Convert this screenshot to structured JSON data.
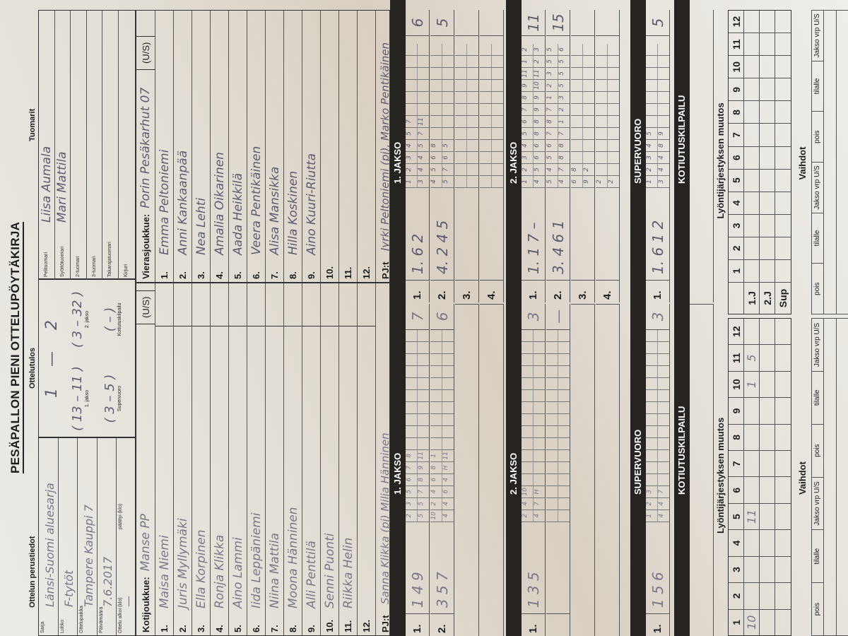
{
  "form": {
    "title": "PESÄPALLON PIENI OTTELUPÖYTÄKIRJA",
    "section_basic": "Ottelun perustiedot",
    "section_result": "Ottelutulos",
    "section_referees": "Tuomarit"
  },
  "basic": [
    {
      "label": "Sarja",
      "value": "Länsi-Suomi aluesarja"
    },
    {
      "label": "Lohko",
      "value": "F-tytöt"
    },
    {
      "label": "Ottelupaikka",
      "value": "Tampere Kauppi 7"
    },
    {
      "label": "Päivämäärä",
      "value": "7.6.2017"
    },
    {
      "label": "Ottelu alkoi (klo)",
      "value": "—",
      "label2": "päättyi (klo)",
      "value2": ""
    }
  ],
  "result": {
    "home": "1",
    "dash": "—",
    "away": "2",
    "periods": [
      {
        "label": "1. jakso",
        "home": "13",
        "away": "11"
      },
      {
        "label": "2. jakso",
        "home": "3",
        "away": "32"
      },
      {
        "label": "Supervuoro",
        "home": "3",
        "away": "5"
      },
      {
        "label": "Kotiutuskilpailu",
        "home": "",
        "away": ""
      }
    ]
  },
  "referees": [
    {
      "label": "Pelituomari",
      "value": "Liisa Aumala"
    },
    {
      "label": "Syöttötuomari",
      "value": "Mari Mattila"
    },
    {
      "label": "2-tuomari",
      "value": ""
    },
    {
      "label": "3-tuomari",
      "value": ""
    },
    {
      "label": "Takarajatuomari",
      "value": ""
    },
    {
      "label": "Kirjuri",
      "value": ""
    }
  ],
  "home": {
    "label": "Kotijoukkue:",
    "name": "Manse PP",
    "us": "(U/S)",
    "players": [
      "Maisa Niemi",
      "Juris Myllymäki",
      "Ella Korpinen",
      "Ronja Klikka",
      "Aino Lammi",
      "Iida Leppäniemi",
      "Niina Mattila",
      "Moona Hänninen",
      "Alli Penttilä",
      "Senni Puonti",
      "Riikka Helin",
      ""
    ],
    "pj_label": "PJ:t",
    "pj": "Sanna Klikka (pj) Milja Hänninen"
  },
  "away": {
    "label": "Vierasjoukkue:",
    "name": "Porin Pesäkarhut 07",
    "us": "(U/S)",
    "players": [
      "Emma Peltoniemi",
      "Anni Kankaanpää",
      "Nea Lehti",
      "Amalia Oikarinen",
      "Aada Heikkilä",
      "Veera Pentikäinen",
      "Alisa Mansikka",
      "Hilla Koskinen",
      "Aino Kuuri-Riutta",
      "",
      "",
      ""
    ],
    "pj_label": "PJ:t",
    "pj": "Jyrki Peltoniemi (pj), Marko Pentikäinen"
  },
  "periods": [
    {
      "title": "1. JAKSO",
      "home_rows": [
        {
          "no": "1.",
          "lineup": "1 4 9",
          "top": [
            "2",
            "3",
            "5",
            "6",
            "7",
            "8"
          ],
          "bottom": [
            "5",
            "5",
            "7",
            "8",
            "9",
            "11"
          ],
          "score": "7"
        },
        {
          "no": "2.",
          "lineup": "3 5 7",
          "top": [
            "10",
            "2",
            "4",
            "6",
            "8",
            "1"
          ],
          "bottom": [
            "4",
            "4",
            "6",
            "4",
            "H",
            "11"
          ],
          "score": "6"
        }
      ],
      "away_rows": [
        {
          "no": "1.",
          "lineup": "1. 6 2",
          "top": [
            "1",
            "2",
            "3",
            "4",
            "5",
            "7"
          ],
          "bottom": [
            "3",
            "4",
            "4",
            "5",
            "7",
            "11"
          ],
          "score": "6"
        },
        {
          "no": "2.",
          "lineup": "4. 2 4 5",
          "top": [
            "4",
            "5",
            "6",
            "8"
          ],
          "bottom": [
            "5",
            "7",
            "6",
            "5"
          ],
          "score": "5"
        },
        {
          "no": "3.",
          "lineup": "",
          "top": [],
          "bottom": [],
          "score": ""
        },
        {
          "no": "4.",
          "lineup": "",
          "top": [],
          "bottom": [],
          "score": ""
        }
      ]
    },
    {
      "title": "2. JAKSO",
      "home_rows": [
        {
          "no": "1.",
          "lineup": "1 3 5",
          "top": [
            "2",
            "4",
            "10"
          ],
          "bottom": [
            "4",
            "7",
            "H"
          ],
          "score": "3"
        },
        {
          "no": "",
          "lineup": "",
          "top": [],
          "bottom": [],
          "score": "—"
        }
      ],
      "away_rows": [
        {
          "no": "1.",
          "lineup": "1. 1 7 –",
          "top": [
            "1",
            "2",
            "3",
            "4",
            "5",
            "6",
            "7",
            "8",
            "9",
            "11",
            "1",
            "2",
            "3",
            "4",
            "5",
            "n"
          ],
          "bottom": [
            "4",
            "5",
            "6",
            "6",
            "8",
            "8",
            "9",
            "9",
            "10",
            "11",
            "2",
            "3",
            "4",
            "5",
            "8",
            "8"
          ],
          "score": "11"
        },
        {
          "no": "2.",
          "lineup": "3. 4 6 1",
          "top": [
            "5",
            "4",
            "5",
            "6",
            "7",
            "8",
            "7",
            "1",
            "2",
            "3",
            "5",
            "5",
            "7",
            "8"
          ],
          "bottom": [
            "4",
            "7",
            "8",
            "8",
            "7",
            "1",
            "2",
            "3",
            "5",
            "5",
            "5",
            "6",
            "H",
            "1"
          ],
          "score": "15"
        },
        {
          "no": "3.",
          "lineup": "",
          "top": [
            "6",
            "8"
          ],
          "bottom": [
            "9",
            "2"
          ],
          "score": ""
        },
        {
          "no": "4.",
          "lineup": "",
          "top": [
            "2"
          ],
          "bottom": [
            "2"
          ],
          "score": ""
        }
      ]
    },
    {
      "title": "SUPERVUORO",
      "home_rows": [
        {
          "no": "1.",
          "lineup": "1 5 6",
          "top": [
            "1",
            "2",
            "3"
          ],
          "bottom": [
            "4",
            "4",
            "7"
          ],
          "score": "3"
        }
      ],
      "away_rows": [
        {
          "no": "1.",
          "lineup": "1. 6 1 2",
          "top": [
            "1",
            "2",
            "3",
            "4",
            "5"
          ],
          "bottom": [
            "3",
            "4",
            "4",
            "8",
            "9"
          ],
          "score": "5"
        }
      ]
    },
    {
      "title": "KOTIUTUSKILPAILU",
      "home_rows": [],
      "away_rows": []
    }
  ],
  "lineup_change": {
    "title": "Lyöntijärjestyksen muutos",
    "numbers": [
      "1",
      "2",
      "3",
      "4",
      "5",
      "6",
      "7",
      "8",
      "9",
      "10",
      "11",
      "12"
    ],
    "row_labels": [
      "1.J",
      "2.J",
      "Sup"
    ],
    "home_entries": [
      [
        "10",
        "",
        "",
        "",
        "11",
        "",
        "",
        "",
        "",
        "1",
        "5",
        ""
      ],
      [
        "",
        "",
        "",
        "",
        "",
        "",
        "",
        "",
        "",
        "",
        "",
        ""
      ],
      [
        "",
        "",
        "",
        "",
        "",
        "",
        "",
        "",
        "",
        "",
        "",
        ""
      ]
    ],
    "away_entries": [
      [
        "",
        "",
        "",
        "",
        "",
        "",
        "",
        "",
        "",
        "",
        "",
        ""
      ],
      [
        "",
        "",
        "",
        "",
        "",
        "",
        "",
        "",
        "",
        "",
        "",
        ""
      ],
      [
        "",
        "",
        "",
        "",
        "",
        "",
        "",
        "",
        "",
        "",
        "",
        ""
      ]
    ]
  },
  "substitutions": {
    "title": "Vaihdot",
    "headers": [
      "pois",
      "tilalle",
      "Jakso vrp U/S",
      "pois",
      "tilalle",
      "Jakso vrp U/S"
    ]
  }
}
